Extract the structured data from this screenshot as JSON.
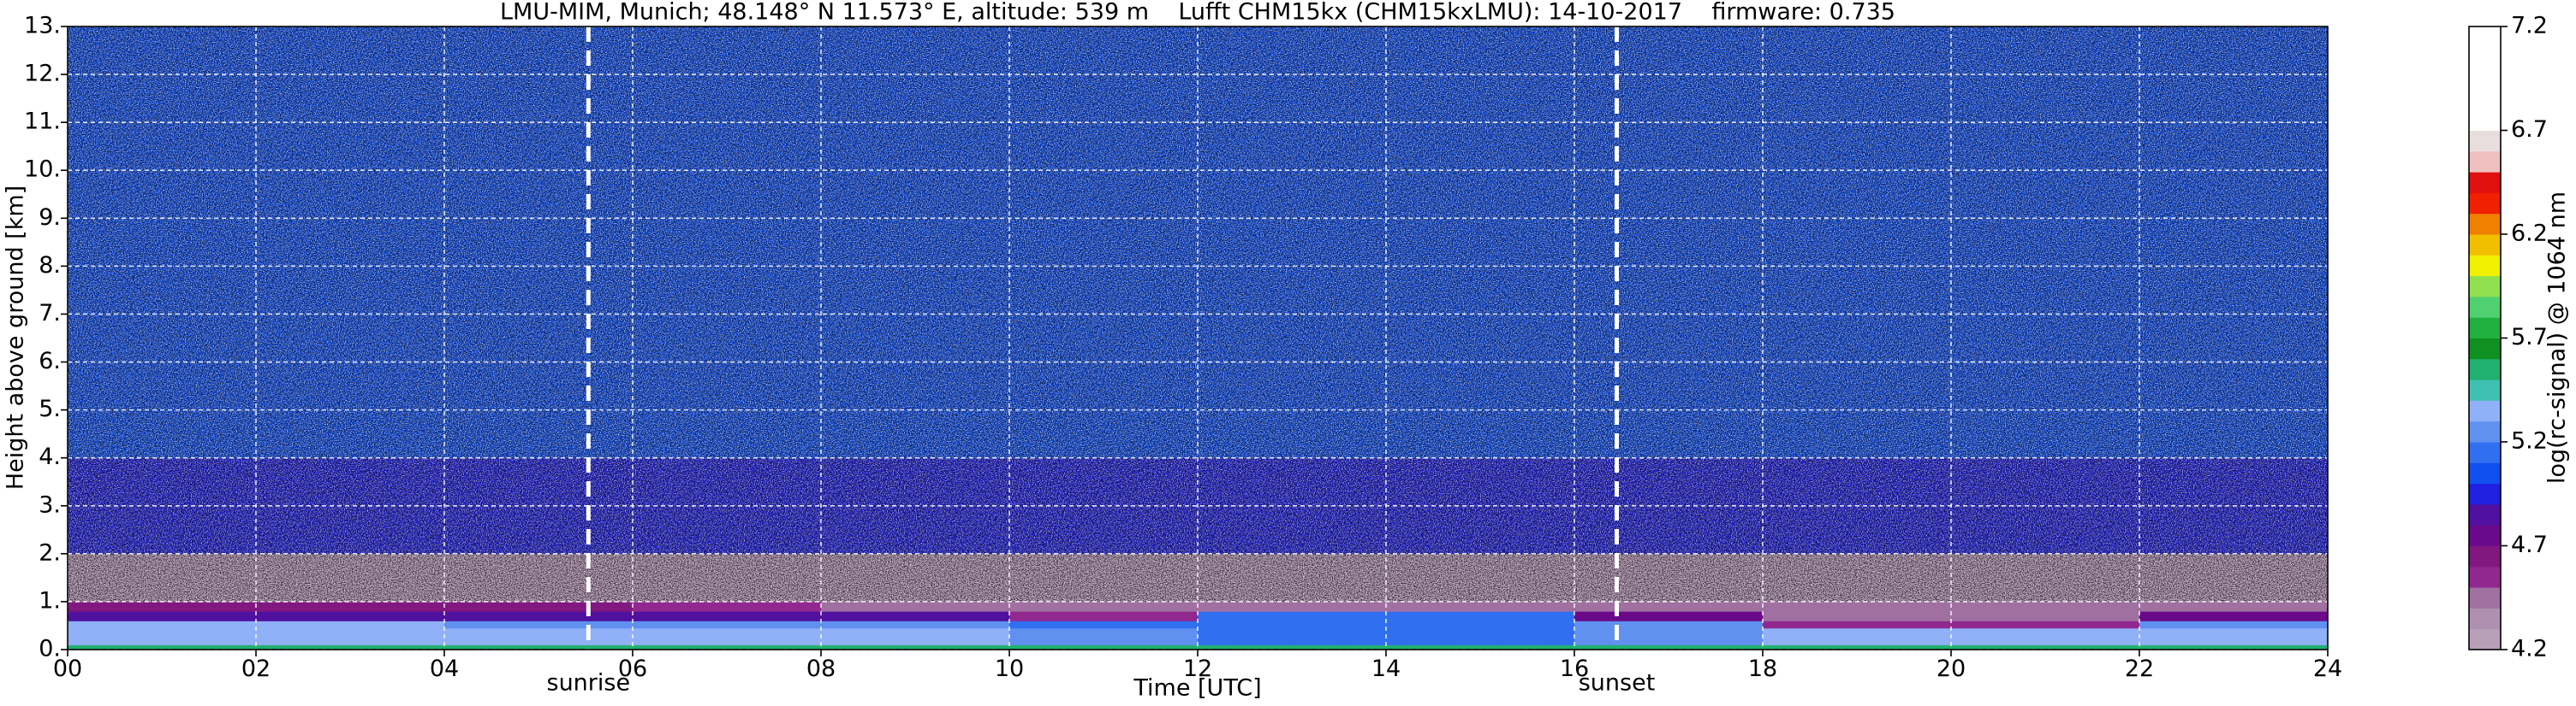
{
  "chart_data": {
    "type": "heatmap",
    "title": "LMU-MIM, Munich; 48.148° N 11.573° E, altitude: 539 m    Lufft CHM15kx (CHM15kxLMU): 14-10-2017    firmware: 0.735",
    "xlabel": "Time [UTC]",
    "ylabel": "Height above ground [km]",
    "xlim": [
      0,
      24
    ],
    "ylim": [
      0,
      13
    ],
    "xticks": [
      {
        "value": 0,
        "label": "00"
      },
      {
        "value": 2,
        "label": "02"
      },
      {
        "value": 4,
        "label": "04"
      },
      {
        "value": 6,
        "label": "06"
      },
      {
        "value": 8,
        "label": "08"
      },
      {
        "value": 10,
        "label": "10"
      },
      {
        "value": 12,
        "label": "12"
      },
      {
        "value": 14,
        "label": "14"
      },
      {
        "value": 16,
        "label": "16"
      },
      {
        "value": 18,
        "label": "18"
      },
      {
        "value": 20,
        "label": "20"
      },
      {
        "value": 22,
        "label": "22"
      },
      {
        "value": 24,
        "label": "24"
      }
    ],
    "yticks": [
      {
        "value": 0,
        "label": "0."
      },
      {
        "value": 1,
        "label": "1."
      },
      {
        "value": 2,
        "label": "2."
      },
      {
        "value": 3,
        "label": "3."
      },
      {
        "value": 4,
        "label": "4."
      },
      {
        "value": 5,
        "label": "5."
      },
      {
        "value": 6,
        "label": "6."
      },
      {
        "value": 7,
        "label": "7."
      },
      {
        "value": 8,
        "label": "8."
      },
      {
        "value": 9,
        "label": "9."
      },
      {
        "value": 10,
        "label": "10."
      },
      {
        "value": 11,
        "label": "11."
      },
      {
        "value": 12,
        "label": "12."
      },
      {
        "value": 13,
        "label": "13."
      }
    ],
    "grid": true,
    "x_edges": [
      0,
      2,
      4,
      6,
      8,
      10,
      12,
      14,
      16,
      18,
      20,
      22,
      24
    ],
    "y_edges": [
      0,
      0.1,
      0.45,
      0.6,
      0.8,
      1.0,
      2.0,
      4.0,
      13.0
    ],
    "z": [
      [
        5.5,
        5.5,
        5.5,
        5.5,
        5.5,
        5.5,
        5.5,
        5.5,
        5.5,
        5.5,
        5.5,
        5.5
      ],
      [
        5.3,
        5.3,
        5.3,
        5.3,
        5.3,
        5.2,
        5.1,
        5.1,
        5.2,
        5.3,
        5.3,
        5.3
      ],
      [
        5.3,
        5.3,
        5.2,
        5.2,
        5.2,
        5.1,
        5.1,
        5.1,
        5.2,
        4.5,
        4.5,
        5.2
      ],
      [
        4.8,
        4.8,
        4.8,
        4.8,
        4.8,
        4.5,
        5.1,
        5.1,
        4.7,
        4.4,
        4.4,
        4.7
      ],
      [
        4.6,
        4.6,
        4.6,
        4.5,
        4.4,
        4.4,
        4.4,
        4.4,
        4.4,
        4.4,
        4.4,
        4.4
      ],
      [
        4.3,
        4.3,
        4.3,
        4.3,
        4.3,
        4.3,
        4.3,
        4.3,
        4.3,
        4.3,
        4.3,
        4.3
      ],
      [
        4.9,
        4.9,
        4.9,
        4.9,
        4.9,
        4.9,
        4.9,
        4.9,
        4.9,
        4.9,
        4.9,
        4.9
      ],
      [
        5.0,
        5.0,
        5.0,
        5.0,
        5.0,
        5.0,
        5.0,
        5.0,
        5.0,
        5.0,
        5.0,
        5.0
      ]
    ],
    "colorbar": {
      "label": "log(rc-signal) @ 1064 nm",
      "lim": [
        4.2,
        7.2
      ],
      "ticks": [
        4.2,
        4.7,
        5.2,
        5.7,
        6.2,
        6.7,
        7.2
      ],
      "colors": [
        "#b8a0b8",
        "#b090b0",
        "#a070a0",
        "#902890",
        "#801880",
        "#6a0a8a",
        "#5010a0",
        "#2020e0",
        "#1050f0",
        "#3070f0",
        "#6090f0",
        "#90b0f8",
        "#40c0b0",
        "#20b070",
        "#109020",
        "#20b040",
        "#50d070",
        "#90e050",
        "#f0f000",
        "#f0c000",
        "#f08000",
        "#f02000",
        "#e01010",
        "#f0c0c0",
        "#e8dede",
        "#ffffff",
        "#ffffff",
        "#ffffff",
        "#ffffff",
        "#ffffff"
      ]
    },
    "annotations": [
      {
        "text": "sunrise",
        "x": 5.53,
        "color": "#ffffff"
      },
      {
        "text": "sunset",
        "x": 16.45,
        "color": "#ffffff"
      }
    ]
  }
}
